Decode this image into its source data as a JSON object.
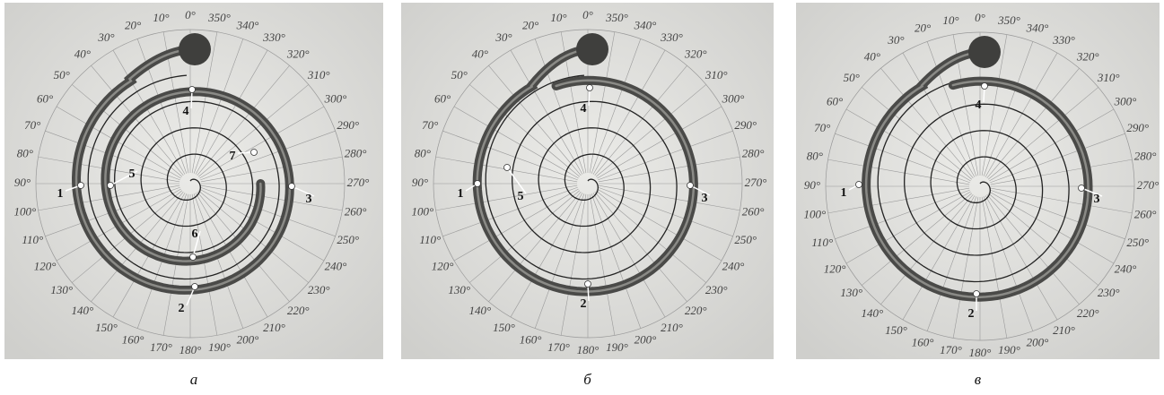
{
  "angle_labels": [
    "0°",
    "10°",
    "20°",
    "30°",
    "40°",
    "50°",
    "60°",
    "70°",
    "80°",
    "90°",
    "100°",
    "110°",
    "120°",
    "130°",
    "140°",
    "150°",
    "160°",
    "170°",
    "180°",
    "190°",
    "200°",
    "210°",
    "220°",
    "230°",
    "240°",
    "250°",
    "260°",
    "270°",
    "280°",
    "290°",
    "300°",
    "310°",
    "320°",
    "330°",
    "340°",
    "350°"
  ],
  "panels": [
    {
      "caption": "а",
      "markers": [
        "1",
        "2",
        "3",
        "4",
        "5",
        "6",
        "7"
      ]
    },
    {
      "caption": "б",
      "markers": [
        "1",
        "2",
        "3",
        "4",
        "5"
      ]
    },
    {
      "caption": "в",
      "markers": [
        "1",
        "2",
        "3",
        "4"
      ]
    }
  ]
}
